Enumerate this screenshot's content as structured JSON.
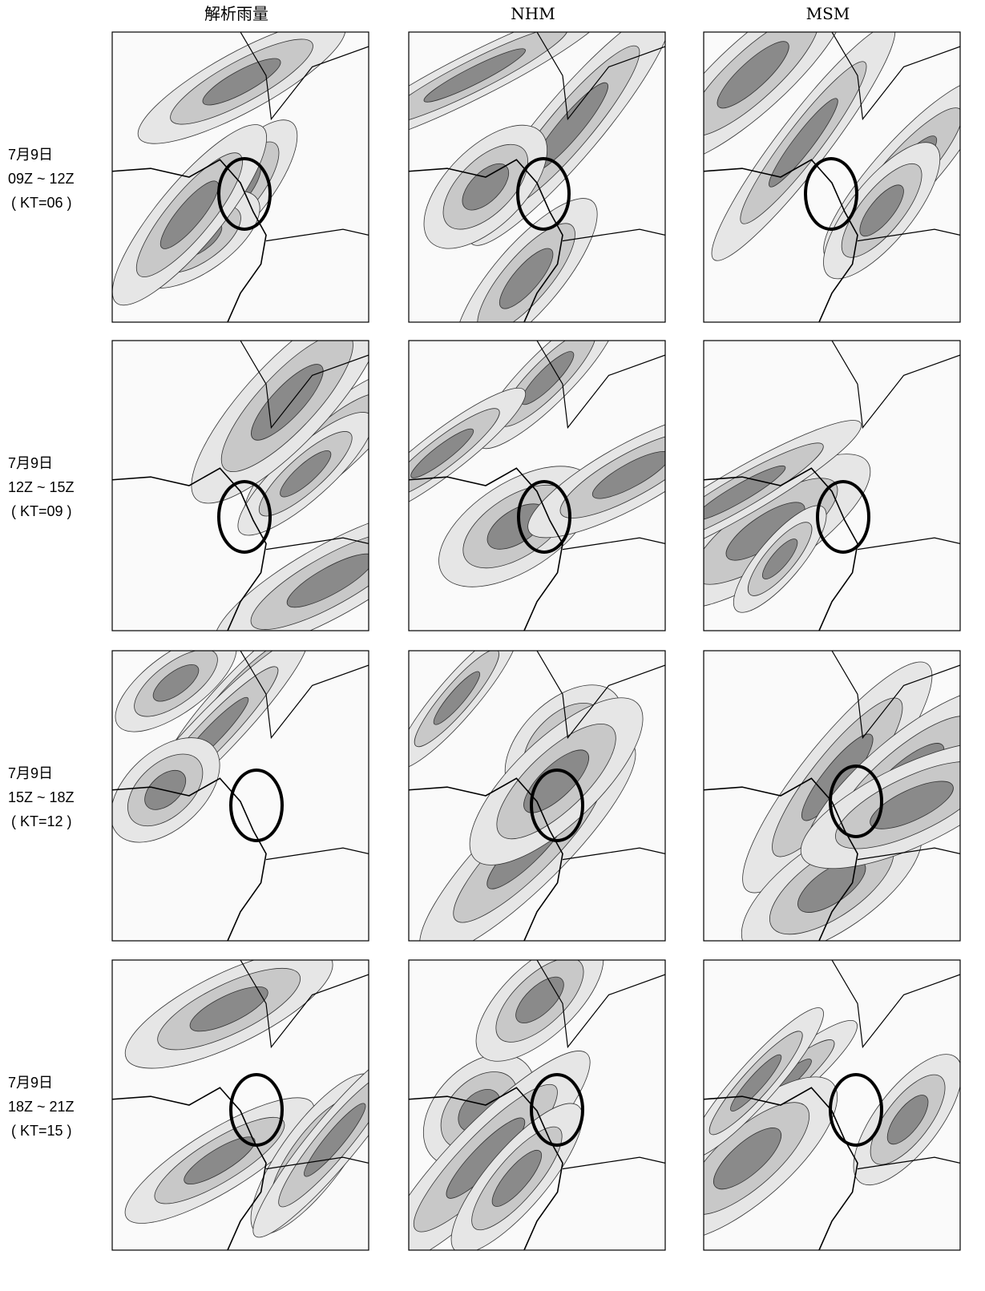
{
  "columns": [
    "解析雨量",
    "NHM",
    "MSM"
  ],
  "rows": [
    {
      "date": "7月9日",
      "period": "09Z ~ 12Z",
      "kt": "( KT=06 )"
    },
    {
      "date": "7月9日",
      "period": "12Z ~ 15Z",
      "kt": "( KT=09 )"
    },
    {
      "date": "7月9日",
      "period": "15Z ~ 18Z",
      "kt": "( KT=12 )"
    },
    {
      "date": "7月9日",
      "period": "18Z ~ 21Z",
      "kt": "( KT=15 )"
    }
  ]
}
